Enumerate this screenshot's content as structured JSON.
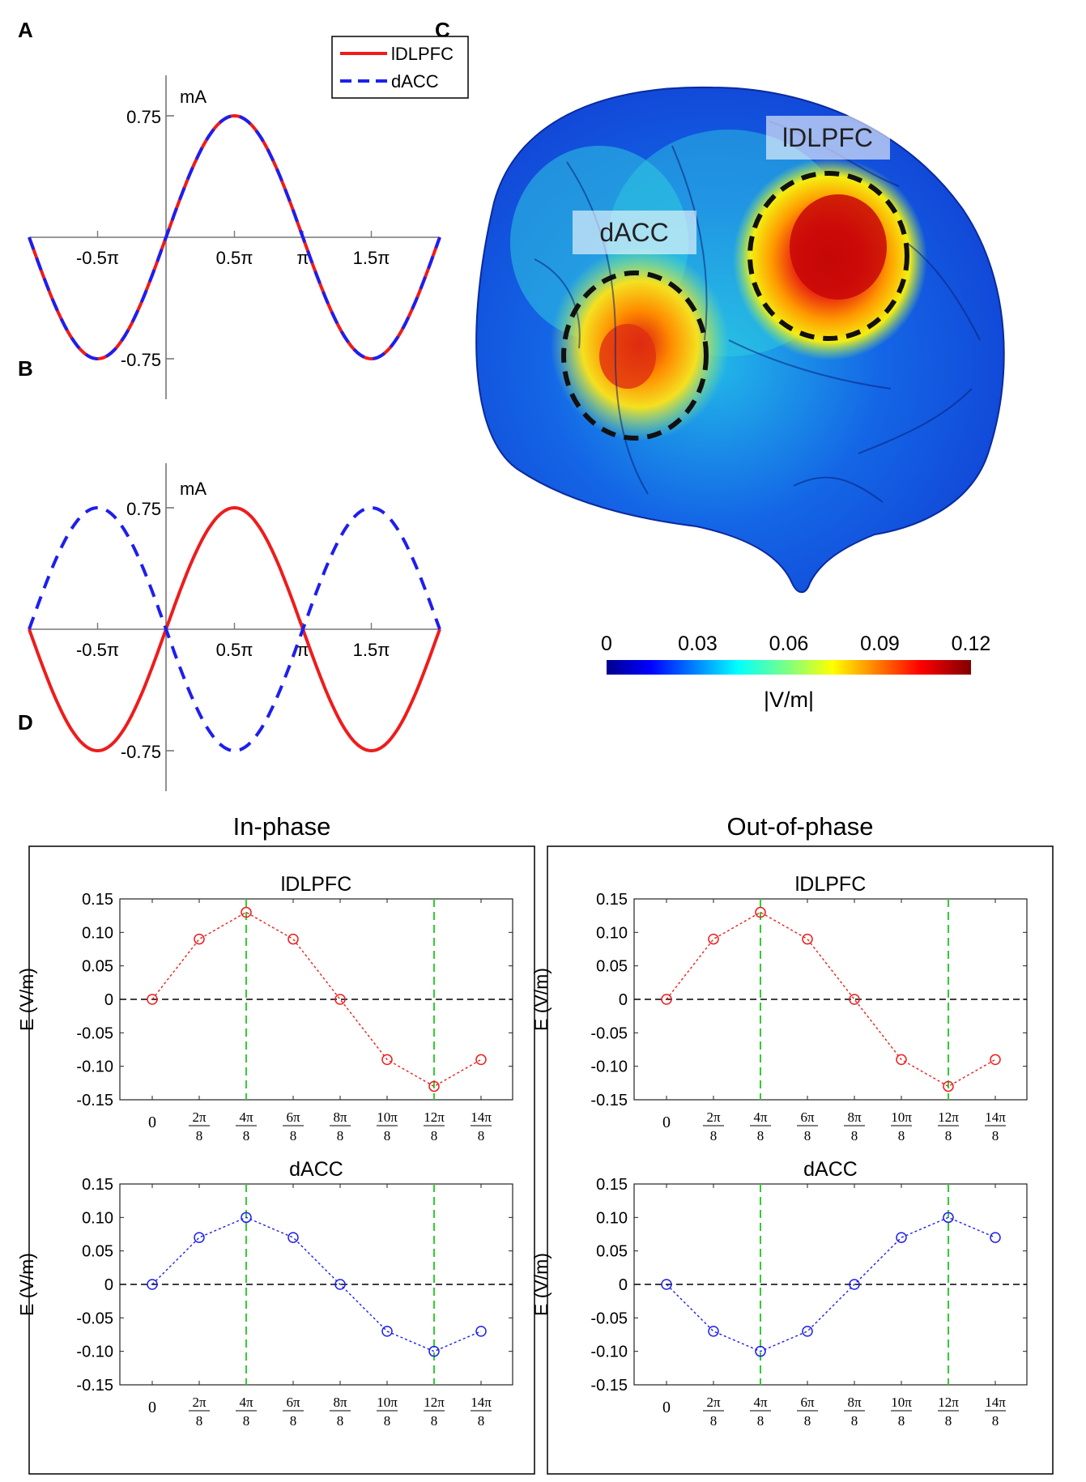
{
  "panel_labels": [
    "A",
    "B",
    "C",
    "D"
  ],
  "colors": {
    "lDLPFC": "#ee1c1c",
    "dACC": "#1e1eee",
    "vertical_markers": "#33cc33",
    "zero_line": "#000000"
  },
  "chart_data": [
    {
      "id": "A",
      "type": "line",
      "title": "",
      "xlabel": "",
      "ylabel": "mA",
      "x_ticks": [
        "-0.5π",
        "0.5π",
        "π",
        "1.5π"
      ],
      "y_ticks": [
        "0.75",
        "-0.75"
      ],
      "xlim": [
        "-π",
        "2π"
      ],
      "ylim": [
        -0.75,
        0.75
      ],
      "legend": "top-right",
      "series": [
        {
          "name": "lDLPFC",
          "function": "0.75·sin(x)",
          "style": "solid"
        },
        {
          "name": "dACC",
          "function": "0.75·sin(x)",
          "style": "dashed"
        }
      ]
    },
    {
      "id": "B",
      "type": "line",
      "title": "",
      "xlabel": "",
      "ylabel": "mA",
      "x_ticks": [
        "-0.5π",
        "0.5π",
        "π",
        "1.5π"
      ],
      "y_ticks": [
        "0.75",
        "-0.75"
      ],
      "xlim": [
        "-π",
        "2π"
      ],
      "ylim": [
        -0.75,
        0.75
      ],
      "series": [
        {
          "name": "lDLPFC",
          "function": "0.75·sin(x)",
          "style": "solid"
        },
        {
          "name": "dACC",
          "function": "-0.75·sin(x)",
          "style": "dashed"
        }
      ]
    },
    {
      "id": "C",
      "type": "heatmap",
      "description_labels": [
        "lDLPFC",
        "dACC"
      ],
      "colorbar_ticks": [
        "0",
        "0.03",
        "0.06",
        "0.09",
        "0.12"
      ],
      "colorbar_range": [
        0,
        0.12
      ],
      "colorbar_label": "|V/m|"
    },
    {
      "id": "D",
      "type": "scatter",
      "group_titles": [
        "In-phase",
        "Out-of-phase"
      ],
      "x_tick_labels": [
        {
          "num": "0",
          "den": ""
        },
        {
          "num": "2π",
          "den": "8"
        },
        {
          "num": "4π",
          "den": "8"
        },
        {
          "num": "6π",
          "den": "8"
        },
        {
          "num": "8π",
          "den": "8"
        },
        {
          "num": "10π",
          "den": "8"
        },
        {
          "num": "12π",
          "den": "8"
        },
        {
          "num": "14π",
          "den": "8"
        }
      ],
      "y_ticks": [
        "0.15",
        "0.10",
        "0.05",
        "0",
        "-0.05",
        "-0.10",
        "-0.15"
      ],
      "ylim": [
        -0.15,
        0.15
      ],
      "ylabel": "E (V/m)",
      "vertical_markers_at_index": [
        2,
        6
      ],
      "subplots": [
        {
          "group": "In-phase",
          "title": "lDLPFC",
          "series": "lDLPFC",
          "values": [
            0,
            0.09,
            0.13,
            0.09,
            0,
            -0.09,
            -0.13,
            -0.09
          ]
        },
        {
          "group": "In-phase",
          "title": "dACC",
          "series": "dACC",
          "values": [
            0,
            0.07,
            0.1,
            0.07,
            0,
            -0.07,
            -0.1,
            -0.07
          ]
        },
        {
          "group": "Out-of-phase",
          "title": "lDLPFC",
          "series": "lDLPFC",
          "values": [
            0,
            0.09,
            0.13,
            0.09,
            0,
            -0.09,
            -0.13,
            -0.09
          ]
        },
        {
          "group": "Out-of-phase",
          "title": "dACC",
          "series": "dACC",
          "values": [
            0,
            -0.07,
            -0.1,
            -0.07,
            0,
            0.07,
            0.1,
            0.07
          ]
        }
      ]
    }
  ]
}
